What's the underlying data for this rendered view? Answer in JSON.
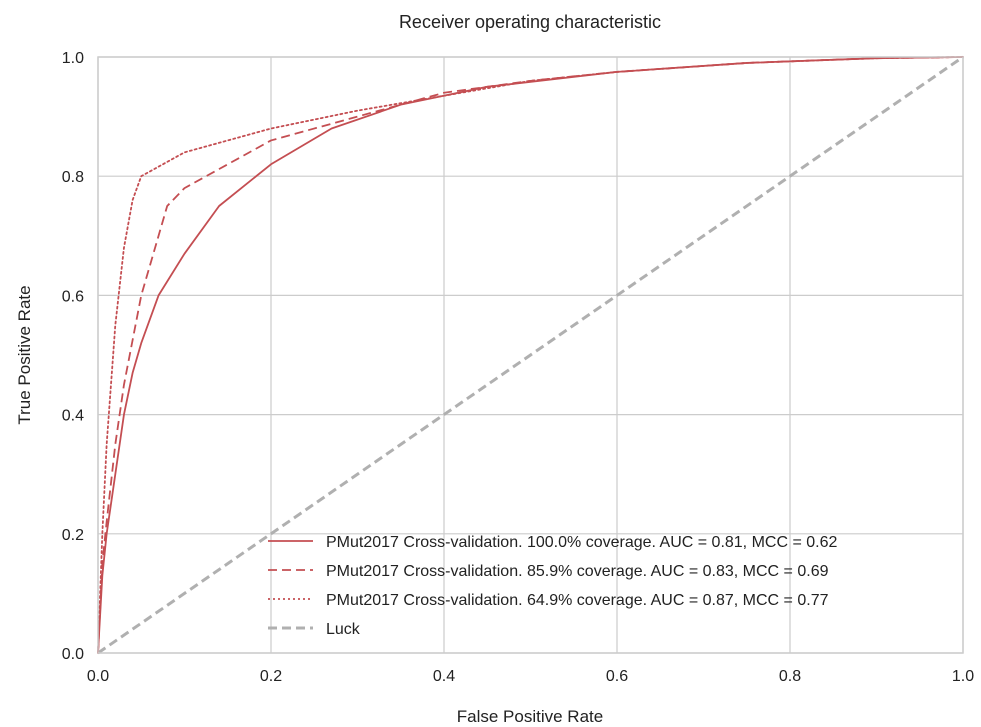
{
  "chart_data": {
    "type": "line",
    "title": "Receiver operating characteristic",
    "xlabel": "False Positive Rate",
    "ylabel": "True Positive Rate",
    "xlim": [
      0.0,
      1.0
    ],
    "ylim": [
      0.0,
      1.0
    ],
    "xticks": [
      "0.0",
      "0.2",
      "0.4",
      "0.6",
      "0.8",
      "1.0"
    ],
    "yticks": [
      "0.0",
      "0.2",
      "0.4",
      "0.6",
      "0.8",
      "1.0"
    ],
    "grid": true,
    "legend_position": "lower-right",
    "series": [
      {
        "name": "PMut2017 Cross-validation. 100.0% coverage. AUC = 0.81, MCC = 0.62",
        "style": "solid",
        "color": "#c44e52",
        "x": [
          0.0,
          0.005,
          0.01,
          0.02,
          0.03,
          0.04,
          0.05,
          0.07,
          0.1,
          0.14,
          0.2,
          0.27,
          0.35,
          0.45,
          0.6,
          0.75,
          0.9,
          1.0
        ],
        "y": [
          0.0,
          0.13,
          0.2,
          0.3,
          0.4,
          0.47,
          0.52,
          0.6,
          0.67,
          0.75,
          0.82,
          0.88,
          0.92,
          0.95,
          0.975,
          0.99,
          0.998,
          1.0
        ]
      },
      {
        "name": "PMut2017 Cross-validation. 85.9% coverage. AUC = 0.83, MCC = 0.69",
        "style": "dashed",
        "color": "#c44e52",
        "x": [
          0.0,
          0.005,
          0.01,
          0.02,
          0.03,
          0.05,
          0.08,
          0.1,
          0.15,
          0.2,
          0.3,
          0.4,
          0.5,
          0.6,
          0.75,
          0.9,
          1.0
        ],
        "y": [
          0.0,
          0.15,
          0.22,
          0.35,
          0.45,
          0.6,
          0.75,
          0.78,
          0.82,
          0.86,
          0.9,
          0.94,
          0.96,
          0.975,
          0.99,
          0.998,
          1.0
        ]
      },
      {
        "name": "PMut2017 Cross-validation. 64.9% coverage. AUC = 0.87, MCC = 0.77",
        "style": "dotted",
        "color": "#c44e52",
        "x": [
          0.0,
          0.005,
          0.01,
          0.02,
          0.03,
          0.04,
          0.05,
          0.1,
          0.2,
          0.3,
          0.4,
          0.5,
          0.6,
          0.75,
          0.9,
          1.0
        ],
        "y": [
          0.0,
          0.2,
          0.35,
          0.55,
          0.68,
          0.76,
          0.8,
          0.84,
          0.88,
          0.91,
          0.935,
          0.96,
          0.975,
          0.99,
          0.998,
          1.0
        ]
      },
      {
        "name": "Luck",
        "style": "dashed",
        "color": "#b0b0b0",
        "x": [
          0.0,
          1.0
        ],
        "y": [
          0.0,
          1.0
        ]
      }
    ]
  }
}
